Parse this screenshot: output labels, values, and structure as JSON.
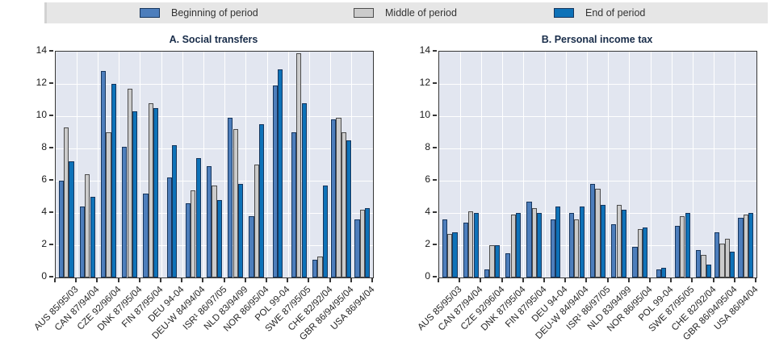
{
  "legend": {
    "items": [
      {
        "series": "beginning",
        "label": "Beginning of period"
      },
      {
        "series": "middle",
        "label": "Middle of period"
      },
      {
        "series": "end",
        "label": "End of period"
      }
    ]
  },
  "colors": {
    "beginning": "#4d7ebc",
    "middle": "#cbcbcb",
    "end": "#0e72b8",
    "bar_border": "#17365d",
    "plot_background": "#e2e6f0",
    "legend_background": "#e6e6e6",
    "frame": "#363636"
  },
  "chart_data": [
    {
      "type": "bar",
      "title": "A. Social transfers",
      "xlabel": "",
      "ylabel": "",
      "ylim": [
        0,
        14
      ],
      "y_ticks": [
        0,
        2,
        4,
        6,
        8,
        10,
        12,
        14
      ],
      "grid": true,
      "legend_position": "top",
      "series_names": [
        "Beginning of period",
        "Middle of period",
        "End of period"
      ],
      "groups": [
        {
          "label": "AUS 85/95/03",
          "bars": [
            [
              "beginning",
              6.0
            ],
            [
              "middle",
              9.3
            ],
            [
              "end",
              7.2
            ]
          ]
        },
        {
          "label": "CAN 87/94/04",
          "bars": [
            [
              "beginning",
              4.4
            ],
            [
              "middle",
              6.4
            ],
            [
              "end",
              5.0
            ]
          ]
        },
        {
          "label": "CZE 92/96/04",
          "bars": [
            [
              "beginning",
              12.8
            ],
            [
              "middle",
              9.0
            ],
            [
              "end",
              12.0
            ]
          ]
        },
        {
          "label": "DNK 87/95/04",
          "bars": [
            [
              "beginning",
              8.1
            ],
            [
              "middle",
              11.7
            ],
            [
              "end",
              10.3
            ]
          ]
        },
        {
          "label": "FIN 87/95/04",
          "bars": [
            [
              "beginning",
              5.2
            ],
            [
              "middle",
              10.8
            ],
            [
              "end",
              10.5
            ]
          ]
        },
        {
          "label": "DEU 94-04",
          "bars": [
            [
              "beginning",
              6.2
            ],
            [
              "end",
              8.2
            ]
          ]
        },
        {
          "label": "DEU-W 84/94/04",
          "bars": [
            [
              "beginning",
              4.6
            ],
            [
              "middle",
              5.4
            ],
            [
              "end",
              7.4
            ]
          ]
        },
        {
          "label": "ISR¹ 86/97/05",
          "bars": [
            [
              "beginning",
              6.9
            ],
            [
              "middle",
              5.7
            ],
            [
              "end",
              4.8
            ]
          ]
        },
        {
          "label": "NLD 83/94/99",
          "bars": [
            [
              "beginning",
              9.9
            ],
            [
              "middle",
              9.2
            ],
            [
              "end",
              5.8
            ]
          ]
        },
        {
          "label": "NOR 86/95/04",
          "bars": [
            [
              "beginning",
              3.8
            ],
            [
              "middle",
              7.0
            ],
            [
              "end",
              9.5
            ]
          ]
        },
        {
          "label": "POL 99-04",
          "bars": [
            [
              "beginning",
              11.9
            ],
            [
              "end",
              12.9
            ]
          ]
        },
        {
          "label": "SWE 87/95/05",
          "bars": [
            [
              "beginning",
              9.0
            ],
            [
              "middle",
              13.9
            ],
            [
              "end",
              10.8
            ]
          ]
        },
        {
          "label": "CHE 82/92/04",
          "bars": [
            [
              "beginning",
              1.1
            ],
            [
              "middle",
              1.3
            ],
            [
              "end",
              5.7
            ]
          ]
        },
        {
          "label": "GBR 86/94/95/04",
          "bars": [
            [
              "beginning",
              9.8
            ],
            [
              "middle",
              9.9
            ],
            [
              "middle",
              9.0
            ],
            [
              "end",
              8.5
            ]
          ]
        },
        {
          "label": "USA 86/94/04",
          "bars": [
            [
              "beginning",
              3.6
            ],
            [
              "middle",
              4.2
            ],
            [
              "end",
              4.3
            ]
          ]
        }
      ]
    },
    {
      "type": "bar",
      "title": "B. Personal income tax",
      "xlabel": "",
      "ylabel": "",
      "ylim": [
        0,
        14
      ],
      "y_ticks": [
        0,
        2,
        4,
        6,
        8,
        10,
        12,
        14
      ],
      "grid": true,
      "legend_position": "top",
      "series_names": [
        "Beginning of period",
        "Middle of period",
        "End of period"
      ],
      "groups": [
        {
          "label": "AUS 85/95/03",
          "bars": [
            [
              "beginning",
              3.6
            ],
            [
              "middle",
              2.7
            ],
            [
              "end",
              2.8
            ]
          ]
        },
        {
          "label": "CAN 87/94/04",
          "bars": [
            [
              "beginning",
              3.4
            ],
            [
              "middle",
              4.1
            ],
            [
              "end",
              4.0
            ]
          ]
        },
        {
          "label": "CZE 92/96/04",
          "bars": [
            [
              "beginning",
              0.5
            ],
            [
              "middle",
              2.0
            ],
            [
              "end",
              2.0
            ]
          ]
        },
        {
          "label": "DNK 87/95/04",
          "bars": [
            [
              "beginning",
              1.5
            ],
            [
              "middle",
              3.9
            ],
            [
              "end",
              4.0
            ]
          ]
        },
        {
          "label": "FIN 87/95/04",
          "bars": [
            [
              "beginning",
              4.7
            ],
            [
              "middle",
              4.3
            ],
            [
              "end",
              4.0
            ]
          ]
        },
        {
          "label": "DEU 94-04",
          "bars": [
            [
              "beginning",
              3.6
            ],
            [
              "end",
              4.4
            ]
          ]
        },
        {
          "label": "DEU-W 84/94/04",
          "bars": [
            [
              "beginning",
              4.0
            ],
            [
              "middle",
              3.6
            ],
            [
              "end",
              4.4
            ]
          ]
        },
        {
          "label": "ISR¹ 86/97/05",
          "bars": [
            [
              "beginning",
              5.8
            ],
            [
              "middle",
              5.5
            ],
            [
              "end",
              4.5
            ]
          ]
        },
        {
          "label": "NLD 83/94/99",
          "bars": [
            [
              "beginning",
              3.3
            ],
            [
              "middle",
              4.5
            ],
            [
              "end",
              4.2
            ]
          ]
        },
        {
          "label": "NOR 86/95/04",
          "bars": [
            [
              "beginning",
              1.9
            ],
            [
              "middle",
              3.0
            ],
            [
              "end",
              3.1
            ]
          ]
        },
        {
          "label": "POL 99-04",
          "bars": [
            [
              "beginning",
              0.5
            ],
            [
              "end",
              0.6
            ]
          ]
        },
        {
          "label": "SWE 87/95/05",
          "bars": [
            [
              "beginning",
              3.2
            ],
            [
              "middle",
              3.8
            ],
            [
              "end",
              4.0
            ]
          ]
        },
        {
          "label": "CHE 82/92/04",
          "bars": [
            [
              "beginning",
              1.7
            ],
            [
              "middle",
              1.4
            ],
            [
              "end",
              0.8
            ]
          ]
        },
        {
          "label": "GBR 86/94/95/04",
          "bars": [
            [
              "beginning",
              2.8
            ],
            [
              "middle",
              2.1
            ],
            [
              "middle",
              2.4
            ],
            [
              "end",
              1.6
            ]
          ]
        },
        {
          "label": "USA 86/94/04",
          "bars": [
            [
              "beginning",
              3.7
            ],
            [
              "middle",
              3.9
            ],
            [
              "end",
              4.0
            ]
          ]
        }
      ]
    }
  ]
}
